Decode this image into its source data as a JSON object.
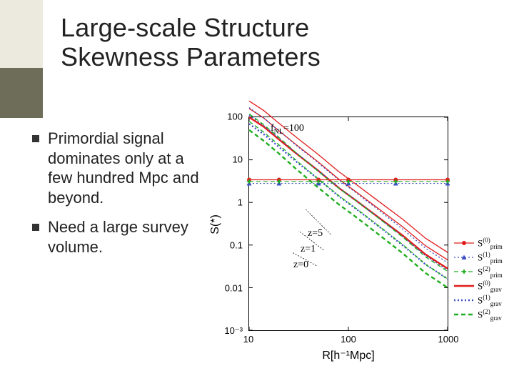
{
  "title_line1": "Large-scale Structure",
  "title_line2": "Skewness Parameters",
  "bullets": [
    "Primordial signal dominates only at a few hundred Mpc and beyond.",
    "Need a large survey volume."
  ],
  "chart": {
    "type": "line-loglog",
    "xlim": [
      10,
      1000
    ],
    "ylim": [
      0.001,
      100
    ],
    "xticks": [
      10,
      100,
      1000
    ],
    "xtick_labels": [
      "10",
      "100",
      "1000"
    ],
    "yticks": [
      0.001,
      0.01,
      0.1,
      1,
      10,
      100
    ],
    "ytick_labels": [
      "10⁻³",
      "0.01",
      "0.1",
      "1",
      "10",
      "100"
    ],
    "xaxis_title": "R[h⁻¹Mpc]",
    "yaxis_title": "S(*)",
    "annotation_fNL": "f_NL=100",
    "z_labels": [
      "z=5",
      "z=1",
      "z=0"
    ],
    "colors": {
      "red": "#e11d1d",
      "blue": "#3b4cc4",
      "green": "#1fae1f",
      "axis": "#000000",
      "bg": "#ffffff"
    },
    "line_width_thin": 1.2,
    "line_width_thick": 2.4,
    "dash_dot": "4 2 1 2",
    "dash": "6 4",
    "solid": "",
    "series_grav": [
      {
        "name": "S0_grav",
        "color": "red",
        "style": "solid",
        "width": "thick",
        "pts": [
          [
            10,
            100
          ],
          [
            14,
            60
          ],
          [
            20,
            30
          ],
          [
            30,
            14
          ],
          [
            50,
            5.5
          ],
          [
            80,
            2.2
          ],
          [
            120,
            1.1
          ],
          [
            200,
            0.45
          ],
          [
            350,
            0.17
          ],
          [
            600,
            0.06
          ],
          [
            1000,
            0.028
          ]
        ]
      },
      {
        "name": "S1_grav",
        "color": "blue",
        "style": "dot",
        "width": "thick",
        "pts": [
          [
            10,
            70
          ],
          [
            14,
            40
          ],
          [
            20,
            20
          ],
          [
            30,
            9
          ],
          [
            50,
            3.5
          ],
          [
            80,
            1.4
          ],
          [
            120,
            0.7
          ],
          [
            200,
            0.28
          ],
          [
            350,
            0.1
          ],
          [
            600,
            0.035
          ],
          [
            1000,
            0.016
          ]
        ]
      },
      {
        "name": "S2_grav",
        "color": "green",
        "style": "dash",
        "width": "thick",
        "pts": [
          [
            10,
            50
          ],
          [
            14,
            28
          ],
          [
            20,
            14
          ],
          [
            30,
            6
          ],
          [
            50,
            2.2
          ],
          [
            80,
            0.9
          ],
          [
            120,
            0.45
          ],
          [
            200,
            0.18
          ],
          [
            350,
            0.065
          ],
          [
            600,
            0.022
          ],
          [
            1000,
            0.01
          ]
        ]
      }
    ],
    "series_prim": [
      {
        "name": "S0_prim",
        "color": "red",
        "marker": "circle",
        "pts": [
          [
            10,
            3.4
          ],
          [
            20,
            3.4
          ],
          [
            50,
            3.4
          ],
          [
            100,
            3.4
          ],
          [
            300,
            3.4
          ],
          [
            1000,
            3.4
          ]
        ]
      },
      {
        "name": "S1_prim",
        "color": "blue",
        "marker": "triangle",
        "pts": [
          [
            10,
            2.8
          ],
          [
            20,
            2.8
          ],
          [
            50,
            2.8
          ],
          [
            100,
            2.8
          ],
          [
            300,
            2.8
          ],
          [
            1000,
            2.8
          ]
        ]
      },
      {
        "name": "S2_prim",
        "color": "green",
        "marker": "star",
        "pts": [
          [
            10,
            3.1
          ],
          [
            20,
            3.1
          ],
          [
            50,
            3.1
          ],
          [
            100,
            3.1
          ],
          [
            300,
            3.1
          ],
          [
            1000,
            3.1
          ]
        ]
      }
    ],
    "legend": [
      {
        "label_html": "S<sup>(0)</sup><sub>prim</sub>",
        "color": "red",
        "style": "solid",
        "width": "thin",
        "marker": "circle"
      },
      {
        "label_html": "S<sup>(1)</sup><sub>prim</sub>",
        "color": "blue",
        "style": "dot",
        "width": "thin",
        "marker": "triangle"
      },
      {
        "label_html": "S<sup>(2)</sup><sub>prim</sub>",
        "color": "green",
        "style": "dash",
        "width": "thin",
        "marker": "star"
      },
      {
        "label_html": "S<sup>(0)</sup><sub>grav</sub>",
        "color": "red",
        "style": "solid",
        "width": "thick",
        "marker": null
      },
      {
        "label_html": "S<sup>(1)</sup><sub>grav</sub>",
        "color": "blue",
        "style": "dot",
        "width": "thick",
        "marker": null
      },
      {
        "label_html": "S<sup>(2)</sup><sub>grav</sub>",
        "color": "green",
        "style": "dash",
        "width": "thick",
        "marker": null
      }
    ]
  }
}
